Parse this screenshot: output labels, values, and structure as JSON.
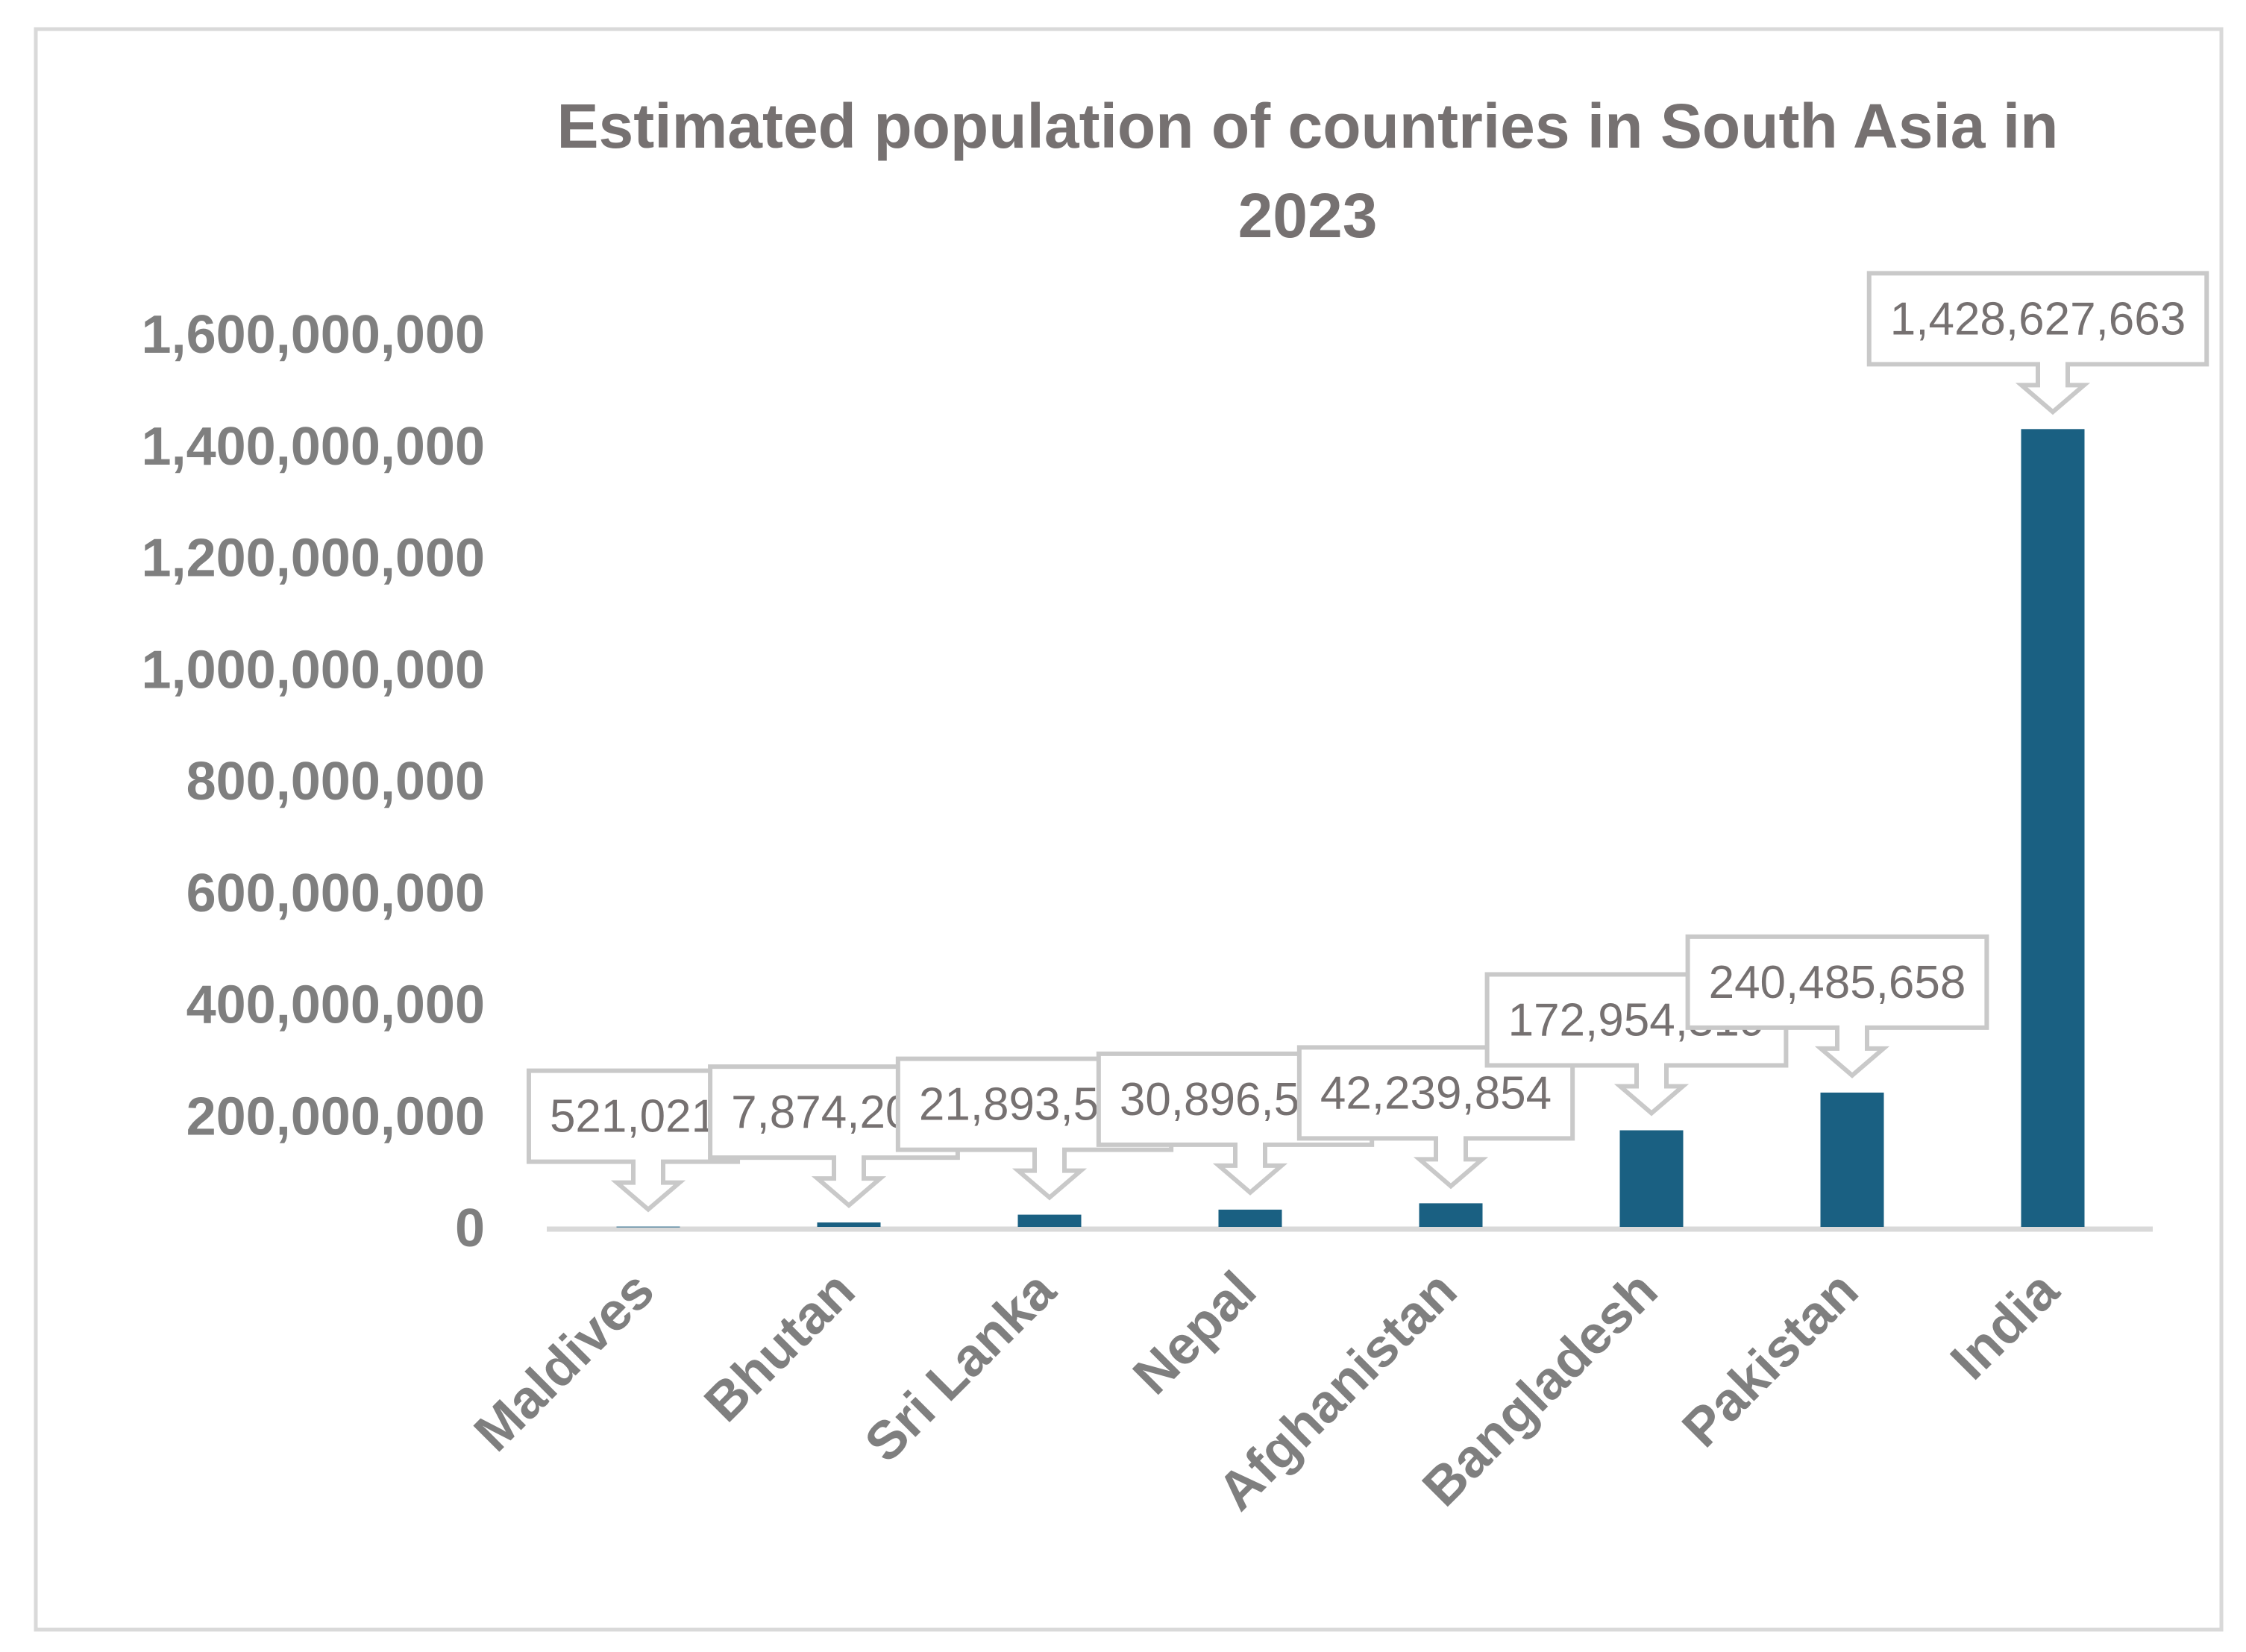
{
  "chart_data": {
    "type": "bar",
    "title": "Estimated population of countries in South Asia in 2023",
    "title_lines": [
      "Estimated population of countries in South Asia in",
      "2023"
    ],
    "xlabel": "",
    "ylabel": "",
    "categories": [
      "Maldives",
      "Bhutan",
      "Sri Lanka",
      "Nepal",
      "Afghanistan",
      "Bangladesh",
      "Pakistan",
      "India"
    ],
    "values": [
      521021,
      7874200,
      21893579,
      30896590,
      42239854,
      172954319,
      240485658,
      1428627663
    ],
    "data_labels": [
      "521,021",
      "7,874,200",
      "21,893,579",
      "30,896,590",
      "42,239,854",
      "172,954,319",
      "240,485,658",
      "1,428,627,663"
    ],
    "ylim": [
      0,
      1600000000
    ],
    "yticks": [
      0,
      200000000,
      400000000,
      600000000,
      800000000,
      1000000000,
      1200000000,
      1400000000,
      1600000000
    ],
    "ytick_labels": [
      "0",
      "200,000,000",
      "400,000,000",
      "600,000,000",
      "800,000,000",
      "1,000,000,000",
      "1,200,000,000",
      "1,400,000,000",
      "1,600,000,000"
    ],
    "grid": false,
    "legend": "none",
    "colors": {
      "bar": "#1a6082",
      "text": "#767171",
      "axis": "#d9d9d9",
      "callout_border": "#c9c9c9"
    }
  }
}
